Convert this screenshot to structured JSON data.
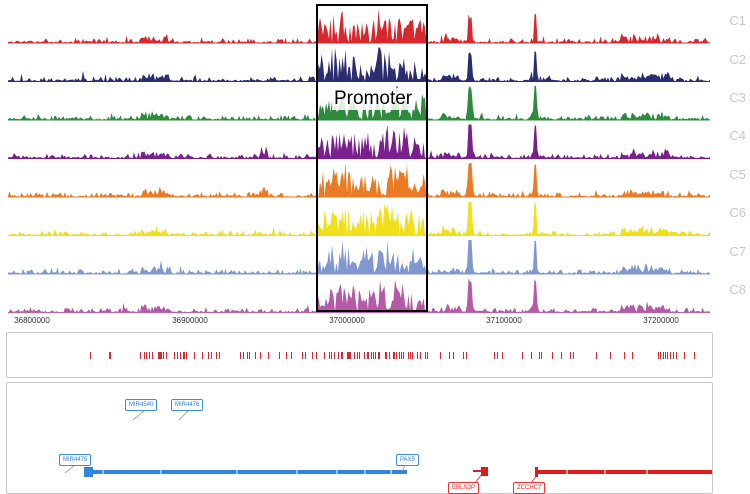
{
  "tracks": [
    {
      "label": "C1",
      "color": "#d7282f"
    },
    {
      "label": "C2",
      "color": "#2b2d6e"
    },
    {
      "label": "C3",
      "color": "#2e8b3e"
    },
    {
      "label": "C4",
      "color": "#7a1f8e"
    },
    {
      "label": "C5",
      "color": "#ea7a24"
    },
    {
      "label": "C6",
      "color": "#efe01a"
    },
    {
      "label": "C7",
      "color": "#8098cf"
    },
    {
      "label": "C8",
      "color": "#b45aa6"
    }
  ],
  "axis": {
    "ticks": [
      "36800000",
      "36900000",
      "37000000",
      "37100000",
      "37200000"
    ]
  },
  "highlight": {
    "label": "Promoter"
  },
  "genes": {
    "mir4540": "MIR4540",
    "mir4476": "MIR4476",
    "mir4475": "MIR4475",
    "pax5": "PAX5",
    "ebln3p": "EBLN3P",
    "zcchc7": "ZCCHC7"
  },
  "colors": {
    "peak_marks": "#d7282f",
    "gene_blue": "#2e86de",
    "gene_red": "#e01b1b"
  }
}
